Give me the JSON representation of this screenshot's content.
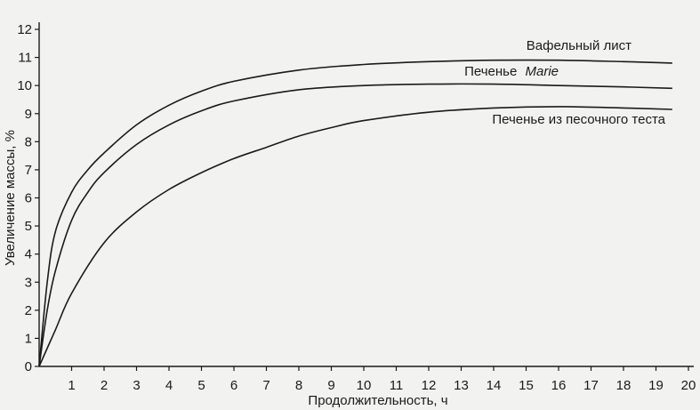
{
  "chart_data": {
    "type": "line",
    "xlabel": "Продолжительность, ч",
    "ylabel": "Увеличение массы, %",
    "xlim": [
      0,
      20
    ],
    "ylim": [
      0,
      12
    ],
    "x_ticks": [
      1,
      2,
      3,
      4,
      5,
      6,
      7,
      8,
      9,
      10,
      11,
      12,
      13,
      14,
      15,
      16,
      17,
      18,
      19,
      20
    ],
    "y_ticks": [
      0,
      1,
      2,
      3,
      4,
      5,
      6,
      7,
      8,
      9,
      10,
      11,
      12
    ],
    "grid": false,
    "legend": "inline labels",
    "color": "#1a1a1a",
    "series": [
      {
        "name": "Вафельный лист",
        "x": [
          0,
          0.25,
          0.5,
          1,
          1.5,
          2,
          3,
          4,
          5,
          6,
          8,
          10,
          12,
          14,
          16,
          18,
          19.5
        ],
        "y": [
          0,
          3.0,
          4.8,
          6.2,
          7.0,
          7.6,
          8.6,
          9.3,
          9.8,
          10.15,
          10.55,
          10.75,
          10.85,
          10.9,
          10.9,
          10.85,
          10.8
        ]
      },
      {
        "name": "Печенье",
        "name_italic": "Marie",
        "x": [
          0,
          0.25,
          0.5,
          1,
          1.5,
          2,
          3,
          4,
          5,
          6,
          8,
          10,
          12,
          14,
          16,
          18,
          19.5
        ],
        "y": [
          0,
          2.0,
          3.4,
          5.2,
          6.2,
          6.9,
          7.9,
          8.6,
          9.1,
          9.45,
          9.85,
          10.0,
          10.05,
          10.05,
          10.0,
          9.95,
          9.9
        ]
      },
      {
        "name": "Печенье из песочного теста",
        "x": [
          0,
          0.5,
          1,
          2,
          3,
          4,
          5,
          6,
          7,
          8,
          9,
          10,
          12,
          14,
          16,
          18,
          19.5
        ],
        "y": [
          0,
          1.3,
          2.6,
          4.4,
          5.5,
          6.3,
          6.9,
          7.4,
          7.8,
          8.2,
          8.5,
          8.75,
          9.05,
          9.2,
          9.25,
          9.2,
          9.15
        ]
      }
    ]
  }
}
